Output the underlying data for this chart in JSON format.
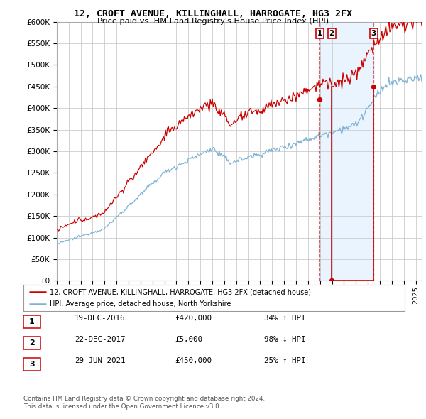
{
  "title": "12, CROFT AVENUE, KILLINGHALL, HARROGATE, HG3 2FX",
  "subtitle": "Price paid vs. HM Land Registry's House Price Index (HPI)",
  "ylim": [
    0,
    600000
  ],
  "yticks": [
    0,
    50000,
    100000,
    150000,
    200000,
    250000,
    300000,
    350000,
    400000,
    450000,
    500000,
    550000,
    600000
  ],
  "ytick_labels": [
    "£0",
    "£50K",
    "£100K",
    "£150K",
    "£200K",
    "£250K",
    "£300K",
    "£350K",
    "£400K",
    "£450K",
    "£500K",
    "£550K",
    "£600K"
  ],
  "xlim_start": 1995.0,
  "xlim_end": 2025.5,
  "legend_line1": "12, CROFT AVENUE, KILLINGHALL, HARROGATE, HG3 2FX (detached house)",
  "legend_line2": "HPI: Average price, detached house, North Yorkshire",
  "t1_x": 2016.97,
  "t1_price": 420000,
  "t2_x": 2017.98,
  "t2_price": 5000,
  "t3_x": 2021.49,
  "t3_price": 450000,
  "footnote1": "Contains HM Land Registry data © Crown copyright and database right 2024.",
  "footnote2": "This data is licensed under the Open Government Licence v3.0.",
  "red_color": "#cc0000",
  "blue_color": "#7fb3d3",
  "grid_color": "#cccccc",
  "bg_color": "#ffffff",
  "shade_color": "#ddeeff",
  "row1": [
    "1",
    "19-DEC-2016",
    "£420,000",
    "34% ↑ HPI"
  ],
  "row2": [
    "2",
    "22-DEC-2017",
    "£5,000",
    "98% ↓ HPI"
  ],
  "row3": [
    "3",
    "29-JUN-2021",
    "£450,000",
    "25% ↑ HPI"
  ]
}
